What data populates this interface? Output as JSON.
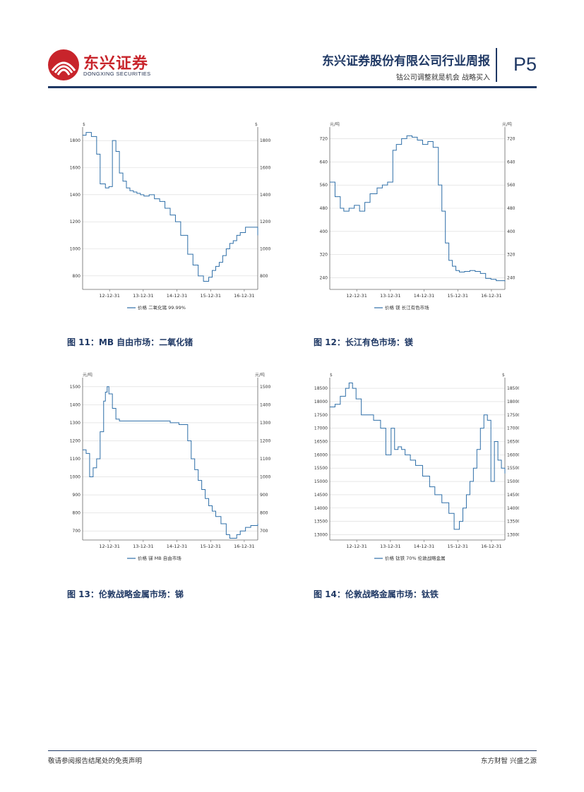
{
  "header": {
    "logo_cn": "东兴证券",
    "logo_en": "DONGXING SECURITIES",
    "company_title": "东兴证券股份有限公司行业周报",
    "report_subtitle": "钴公司调整就是机会 战略买入",
    "page_number": "P5"
  },
  "captions": [
    "图 11：MB 自由市场：二氧化锗",
    "图 12：长江有色市场：镁",
    "图 13：伦敦战略金属市场：锑",
    "图 14：伦敦战略金属市场：钛铁"
  ],
  "footer": {
    "left": "敬请参阅报告结尾处的免责声明",
    "right": "东方财智 兴盛之源"
  },
  "colors": {
    "brand_red": "#c8242b",
    "navy": "#1f3864",
    "series_line": "#2f6fa8",
    "grid": "#d9d9d9"
  },
  "chart_data": [
    {
      "type": "line",
      "title": "",
      "unit_left": "$",
      "unit_right": "$",
      "x_ticks": [
        "12-12-31",
        "13-12-31",
        "14-12-31",
        "15-12-31",
        "16-12-31"
      ],
      "ylim": [
        700,
        1900
      ],
      "y_ticks": [
        800,
        1000,
        1200,
        1400,
        1600,
        1800
      ],
      "legend": "价格 二氧化锗 99.99%",
      "x": [
        0.0,
        0.02,
        0.05,
        0.08,
        0.1,
        0.13,
        0.15,
        0.17,
        0.19,
        0.21,
        0.23,
        0.25,
        0.27,
        0.29,
        0.31,
        0.33,
        0.35,
        0.38,
        0.41,
        0.44,
        0.47,
        0.5,
        0.53,
        0.56,
        0.6,
        0.63,
        0.66,
        0.69,
        0.72,
        0.74,
        0.76,
        0.78,
        0.8,
        0.82,
        0.84,
        0.86,
        0.88,
        0.9,
        0.93,
        0.96,
        1.0
      ],
      "y": [
        1840,
        1860,
        1830,
        1700,
        1480,
        1450,
        1460,
        1800,
        1720,
        1560,
        1500,
        1450,
        1430,
        1420,
        1410,
        1400,
        1390,
        1400,
        1370,
        1350,
        1300,
        1250,
        1200,
        1100,
        960,
        880,
        800,
        760,
        790,
        840,
        870,
        900,
        950,
        1000,
        1040,
        1060,
        1100,
        1120,
        1160,
        1160,
        1100
      ]
    },
    {
      "type": "line",
      "title": "",
      "unit_left": "元/吨",
      "unit_right": "元/吨",
      "x_ticks": [
        "12-12-31",
        "13-12-31",
        "14-12-31",
        "15-12-31",
        "16-12-31"
      ],
      "ylim": [
        200,
        760
      ],
      "y_ticks": [
        240,
        320,
        400,
        480,
        560,
        640,
        720
      ],
      "legend": "价格 镁 长江有色市场",
      "x": [
        0.0,
        0.03,
        0.06,
        0.08,
        0.11,
        0.14,
        0.17,
        0.2,
        0.23,
        0.27,
        0.3,
        0.33,
        0.36,
        0.38,
        0.41,
        0.44,
        0.47,
        0.5,
        0.53,
        0.56,
        0.59,
        0.62,
        0.64,
        0.66,
        0.68,
        0.7,
        0.72,
        0.74,
        0.77,
        0.8,
        0.83,
        0.86,
        0.89,
        0.92,
        0.95,
        0.97,
        1.0
      ],
      "y": [
        570,
        520,
        480,
        470,
        480,
        490,
        470,
        500,
        530,
        550,
        560,
        570,
        680,
        700,
        720,
        730,
        725,
        715,
        700,
        710,
        690,
        560,
        470,
        360,
        300,
        280,
        265,
        260,
        262,
        265,
        262,
        255,
        238,
        235,
        230,
        230,
        228
      ]
    },
    {
      "type": "line",
      "title": "",
      "unit_left": "元/吨",
      "unit_right": "元/吨",
      "x_ticks": [
        "12-12-31",
        "13-12-31",
        "14-12-31",
        "15-12-31",
        "16-12-31"
      ],
      "ylim": [
        650,
        1550
      ],
      "y_ticks": [
        700,
        800,
        900,
        1000,
        1100,
        1200,
        1300,
        1400,
        1500
      ],
      "legend": "价格 锑 MB 自由市场",
      "x": [
        0.0,
        0.02,
        0.04,
        0.06,
        0.08,
        0.1,
        0.12,
        0.13,
        0.14,
        0.15,
        0.17,
        0.19,
        0.21,
        0.25,
        0.3,
        0.35,
        0.4,
        0.45,
        0.5,
        0.55,
        0.6,
        0.62,
        0.64,
        0.66,
        0.68,
        0.7,
        0.72,
        0.74,
        0.76,
        0.79,
        0.82,
        0.84,
        0.86,
        0.88,
        0.9,
        0.93,
        0.96,
        1.0
      ],
      "y": [
        1150,
        1130,
        1000,
        1050,
        1100,
        1250,
        1420,
        1470,
        1500,
        1460,
        1380,
        1320,
        1310,
        1310,
        1310,
        1310,
        1310,
        1310,
        1300,
        1290,
        1200,
        1100,
        1040,
        980,
        930,
        880,
        840,
        810,
        780,
        740,
        680,
        660,
        660,
        680,
        700,
        720,
        730,
        740
      ]
    },
    {
      "type": "line",
      "title": "",
      "unit_left": "$",
      "unit_right": "$",
      "x_ticks": [
        "12-12-31",
        "13-12-31",
        "14-12-31",
        "15-12-31",
        "16-12-31"
      ],
      "ylim": [
        12800,
        18900
      ],
      "y_ticks": [
        13000,
        13500,
        14000,
        14500,
        15000,
        15500,
        16000,
        16500,
        17000,
        17500,
        18000,
        18500
      ],
      "legend": "价格 钛铁 70% 伦敦战略金属",
      "x": [
        0.0,
        0.03,
        0.06,
        0.09,
        0.11,
        0.13,
        0.15,
        0.18,
        0.21,
        0.25,
        0.29,
        0.32,
        0.35,
        0.37,
        0.39,
        0.41,
        0.43,
        0.46,
        0.49,
        0.53,
        0.57,
        0.6,
        0.64,
        0.68,
        0.71,
        0.74,
        0.76,
        0.78,
        0.8,
        0.82,
        0.84,
        0.86,
        0.88,
        0.9,
        0.92,
        0.94,
        0.96,
        0.98,
        1.0
      ],
      "y": [
        17800,
        17900,
        18200,
        18500,
        18700,
        18500,
        18100,
        17500,
        17500,
        17300,
        17000,
        16000,
        17000,
        16200,
        16300,
        16200,
        16000,
        15800,
        15600,
        15200,
        14800,
        14500,
        14200,
        13800,
        13200,
        13500,
        14000,
        14500,
        15000,
        15500,
        16200,
        17000,
        17500,
        17300,
        15000,
        16500,
        15800,
        15500,
        15300
      ]
    }
  ]
}
